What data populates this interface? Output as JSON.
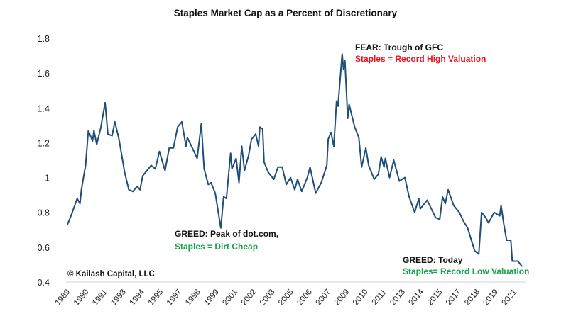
{
  "chart_data": {
    "type": "line",
    "title": "Staples Market Cap as a Percent of Discretionary",
    "xlabel": "",
    "ylabel": "",
    "ylim": [
      0.4,
      1.8
    ],
    "yticks": [
      "0.4",
      "0.6",
      "0.8",
      "1",
      "1.2",
      "1.4",
      "1.6",
      "1.8"
    ],
    "xlim": [
      1989,
      2021.8
    ],
    "xticks": [
      "1989",
      "1990",
      "1991",
      "1993",
      "1994",
      "1995",
      "1997",
      "1998",
      "1999",
      "2001",
      "2002",
      "2003",
      "2005",
      "2006",
      "2007",
      "2009",
      "2010",
      "2011",
      "2013",
      "2014",
      "2015",
      "2017",
      "2018",
      "2019",
      "2021"
    ],
    "grid": false,
    "legend": "none",
    "line_color": "#1f4e79",
    "series": [
      {
        "x": [
          1989.1,
          1989.4,
          1989.8,
          1990.0,
          1990.1,
          1990.4,
          1990.6,
          1990.9,
          1991.0,
          1991.2,
          1991.5,
          1991.8,
          1992.0,
          1992.3,
          1992.5,
          1992.8,
          1993.2,
          1993.5,
          1993.8,
          1994.1,
          1994.3,
          1994.5,
          1995.1,
          1995.4,
          1995.7,
          1996.1,
          1996.4,
          1996.7,
          1997.0,
          1997.3,
          1997.6,
          1997.7,
          1998.0,
          1998.4,
          1998.7,
          1998.9,
          1999.2,
          1999.4,
          1999.7,
          2000.1,
          2000.3,
          2000.5,
          2000.8,
          2000.9,
          2001.2,
          2001.4,
          2001.6,
          2001.8,
          2002.1,
          2002.3,
          2002.6,
          2002.8,
          2002.9,
          2003.1,
          2003.2,
          2003.5,
          2003.9,
          2004.2,
          2004.5,
          2004.8,
          2005.1,
          2005.4,
          2005.6,
          2005.9,
          2006.3,
          2006.5,
          2006.9,
          2007.3,
          2007.7,
          2007.8,
          2008.0,
          2008.2,
          2008.4,
          2008.5,
          2008.8,
          2008.9,
          2009.0,
          2009.2,
          2009.3,
          2009.7,
          2010.0,
          2010.2,
          2010.5,
          2010.7,
          2011.1,
          2011.4,
          2011.6,
          2011.8,
          2011.9,
          2012.2,
          2012.5,
          2012.9,
          2013.3,
          2013.6,
          2014.0,
          2014.3,
          2014.4,
          2014.9,
          2015.5,
          2015.8,
          2016.0,
          2016.2,
          2016.4,
          2016.8,
          2017.2,
          2017.5,
          2017.8,
          2018.3,
          2018.6,
          2018.8,
          2019.1,
          2019.3,
          2019.7,
          2020.1,
          2020.2,
          2020.4,
          2020.6,
          2020.9,
          2021.0,
          2021.4,
          2021.7
        ],
        "values": [
          0.73,
          0.79,
          0.88,
          0.85,
          0.93,
          1.07,
          1.27,
          1.21,
          1.27,
          1.19,
          1.29,
          1.43,
          1.25,
          1.24,
          1.32,
          1.22,
          1.03,
          0.93,
          0.92,
          0.95,
          0.93,
          1.01,
          1.07,
          1.05,
          1.15,
          1.04,
          1.17,
          1.17,
          1.29,
          1.32,
          1.18,
          1.23,
          1.18,
          1.11,
          1.31,
          1.05,
          0.96,
          0.97,
          0.91,
          0.71,
          0.89,
          0.88,
          1.14,
          1.05,
          1.11,
          0.97,
          1.18,
          1.04,
          1.13,
          1.22,
          1.25,
          1.18,
          1.29,
          1.28,
          1.09,
          1.03,
          0.99,
          1.06,
          1.06,
          0.96,
          1.0,
          0.93,
          0.99,
          0.92,
          1.0,
          1.06,
          0.91,
          0.97,
          1.07,
          1.22,
          1.26,
          1.18,
          1.44,
          1.41,
          1.71,
          1.62,
          1.67,
          1.34,
          1.42,
          1.29,
          1.23,
          1.06,
          1.17,
          1.07,
          0.99,
          1.02,
          1.12,
          1.06,
          1.11,
          1.0,
          1.1,
          0.98,
          1.0,
          0.89,
          0.8,
          0.88,
          0.82,
          0.87,
          0.77,
          0.76,
          0.89,
          0.85,
          0.93,
          0.84,
          0.8,
          0.75,
          0.71,
          0.58,
          0.56,
          0.8,
          0.77,
          0.74,
          0.8,
          0.78,
          0.84,
          0.73,
          0.64,
          0.64,
          0.52,
          0.52,
          0.49
        ]
      }
    ],
    "annotations": {
      "fear_title": "FEAR: Trough of GFC",
      "fear_sub": "Staples = Record High Valuation",
      "dotcom_title": "GREED: Peak of dot.com,",
      "dotcom_sub": "Staples = Dirt Cheap",
      "today_title": "GREED: Today",
      "today_sub": "Staples= Record Low Valuation",
      "red": "#e8141c",
      "green": "#17a34a"
    },
    "copyright": "© Kailash Capital, LLC"
  }
}
